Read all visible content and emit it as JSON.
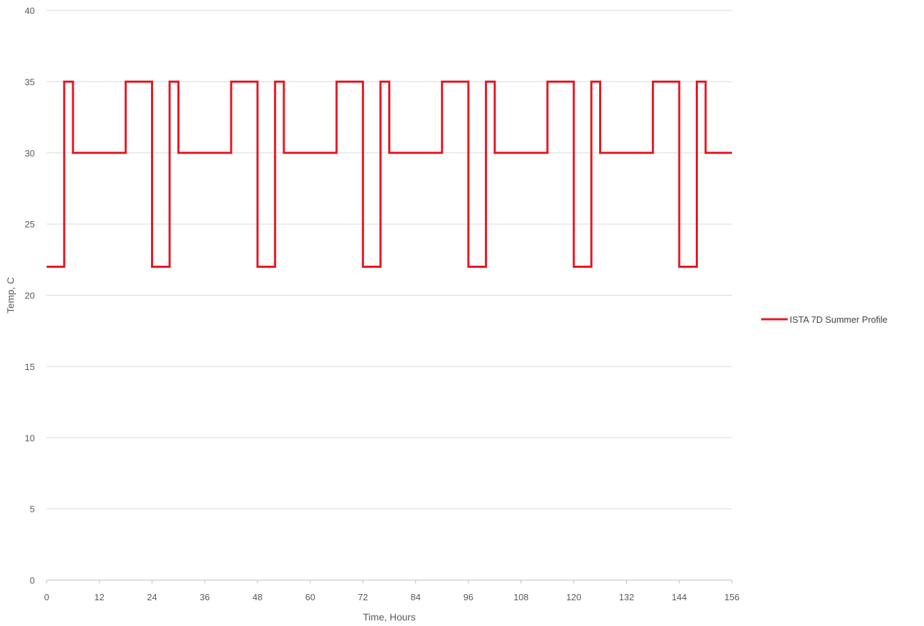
{
  "chart_data": {
    "type": "line",
    "xlabel": "Time, Hours",
    "ylabel": "Temp, C",
    "xlim": [
      0,
      156
    ],
    "ylim": [
      0,
      40
    ],
    "x_ticks": [
      0,
      12,
      24,
      36,
      48,
      60,
      72,
      84,
      96,
      108,
      120,
      132,
      144,
      156
    ],
    "y_ticks": [
      0,
      5,
      10,
      15,
      20,
      25,
      30,
      35,
      40
    ],
    "grid": "horizontal",
    "legend_position": "right",
    "series": [
      {
        "name": "ISTA 7D Summer Profile",
        "color": "#e8141e",
        "x": [
          0,
          4,
          4,
          6,
          6,
          18,
          18,
          24,
          24,
          28,
          28,
          30,
          30,
          42,
          42,
          48,
          48,
          52,
          52,
          54,
          54,
          66,
          66,
          72,
          72,
          76,
          76,
          78,
          78,
          90,
          90,
          96,
          96,
          100,
          100,
          102,
          102,
          114,
          114,
          120,
          120,
          124,
          124,
          126,
          126,
          138,
          138,
          144,
          144,
          148,
          148,
          150,
          150,
          156
        ],
        "y": [
          22,
          22,
          35,
          35,
          30,
          30,
          35,
          35,
          22,
          22,
          35,
          35,
          30,
          30,
          35,
          35,
          22,
          22,
          35,
          35,
          30,
          30,
          35,
          35,
          22,
          22,
          35,
          35,
          30,
          30,
          35,
          35,
          22,
          22,
          35,
          35,
          30,
          30,
          35,
          35,
          22,
          22,
          35,
          35,
          30,
          30,
          35,
          35,
          22,
          22,
          35,
          35,
          30,
          30
        ]
      }
    ]
  }
}
